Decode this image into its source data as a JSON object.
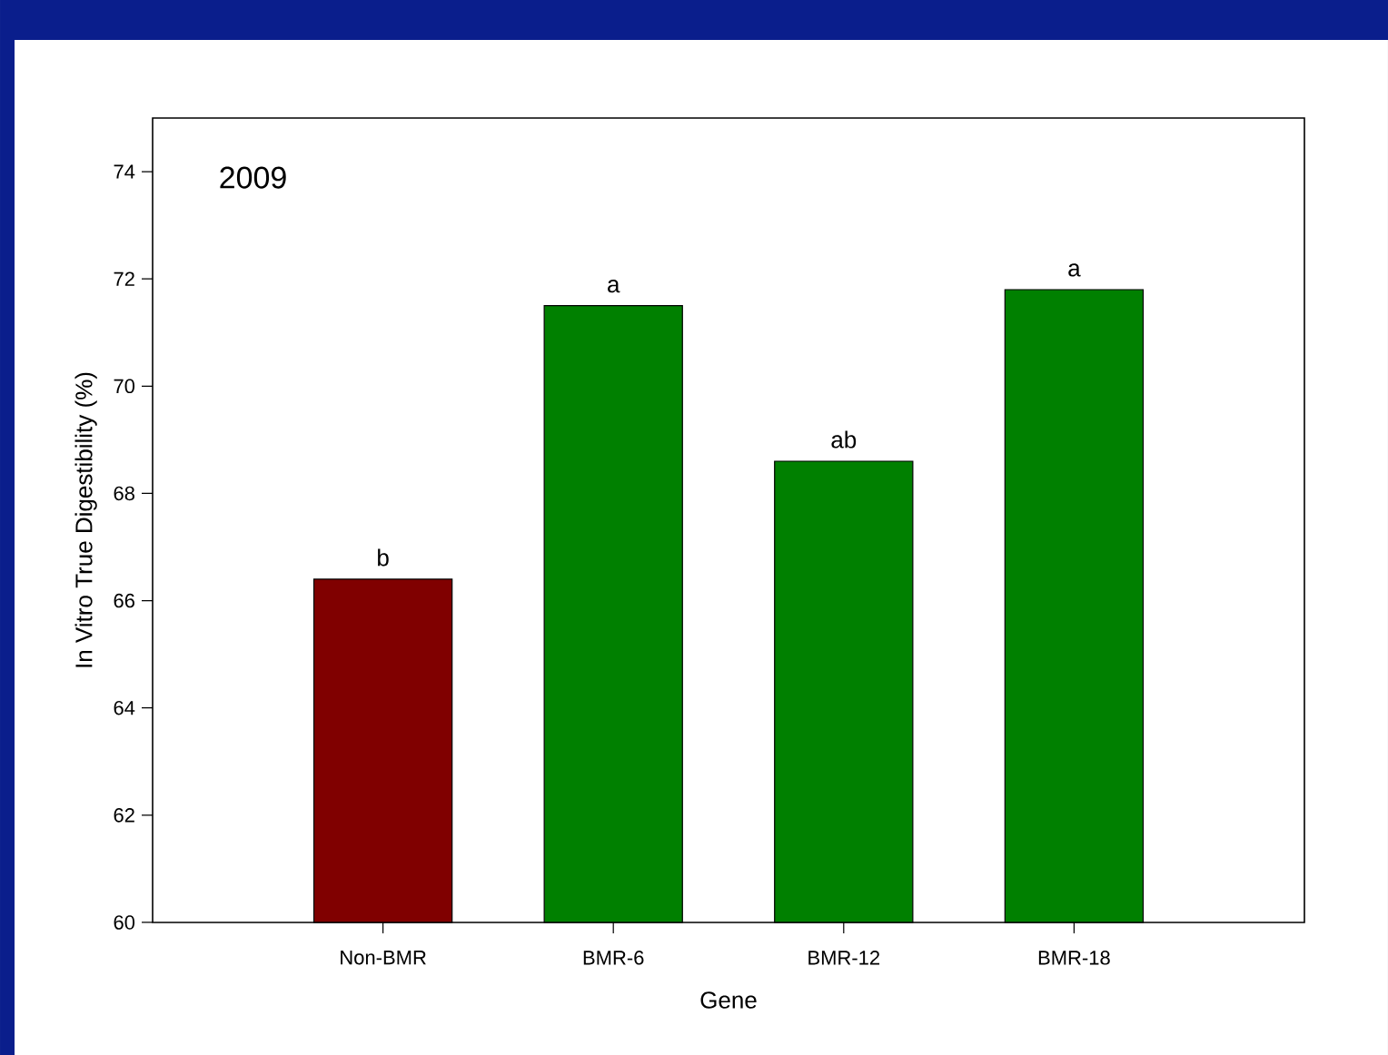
{
  "chart_data": {
    "type": "bar",
    "categories": [
      "Non-BMR",
      "BMR-6",
      "BMR-12",
      "BMR-18"
    ],
    "values": [
      66.4,
      71.5,
      68.6,
      71.8
    ],
    "colors": [
      "#800000",
      "#008000",
      "#008000",
      "#008000"
    ],
    "xlabel": "Gene",
    "ylabel": "In Vitro True Digestibility (%)",
    "ylim": [
      60,
      75
    ],
    "yticks": [
      60,
      62,
      64,
      66,
      68,
      70,
      72,
      74
    ],
    "annotations": [
      "2009",
      {
        "text": "b",
        "x": "Non-BMR",
        "y": 66.4
      },
      {
        "text": "a",
        "x": "BMR-6",
        "y": 71.5
      },
      {
        "text": "ab",
        "x": "BMR-12",
        "y": 68.6
      },
      {
        "text": "a",
        "x": "BMR-18",
        "y": 71.8
      }
    ],
    "grid": false
  }
}
